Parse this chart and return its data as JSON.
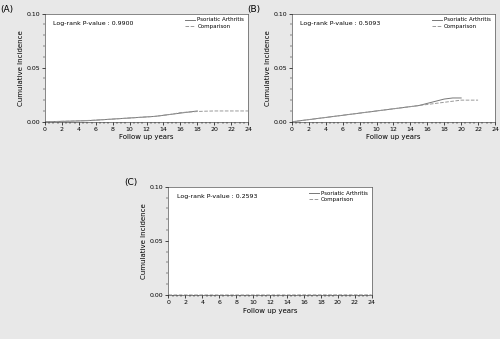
{
  "panels": [
    {
      "label": "(A)",
      "pvalue": "Log-rank P-value : 0.9900",
      "pa_x": [
        0,
        1,
        2,
        3,
        4,
        5,
        6,
        7,
        8,
        9,
        10,
        11,
        12,
        13,
        14,
        15,
        16,
        17,
        18
      ],
      "pa_y": [
        0.0,
        0.0002,
        0.0004,
        0.0006,
        0.0008,
        0.001,
        0.0015,
        0.002,
        0.0025,
        0.003,
        0.0035,
        0.004,
        0.0045,
        0.005,
        0.006,
        0.007,
        0.008,
        0.009,
        0.01
      ],
      "comp_x": [
        0,
        1,
        2,
        3,
        4,
        5,
        6,
        7,
        8,
        9,
        10,
        11,
        12,
        13,
        14,
        15,
        16,
        17,
        18,
        19,
        20,
        21,
        22,
        23,
        24
      ],
      "comp_y": [
        0.0,
        0.0002,
        0.0004,
        0.0006,
        0.0009,
        0.0012,
        0.0015,
        0.002,
        0.0025,
        0.003,
        0.0035,
        0.004,
        0.0045,
        0.005,
        0.006,
        0.007,
        0.0085,
        0.009,
        0.0095,
        0.0098,
        0.01,
        0.01,
        0.01,
        0.01,
        0.01
      ]
    },
    {
      "label": "(B)",
      "pvalue": "Log-rank P-value : 0.5093",
      "pa_x": [
        0,
        1,
        2,
        3,
        4,
        5,
        6,
        7,
        8,
        9,
        10,
        11,
        12,
        13,
        14,
        15,
        16,
        17,
        18,
        19,
        20
      ],
      "pa_y": [
        0.0,
        0.001,
        0.002,
        0.003,
        0.004,
        0.005,
        0.006,
        0.007,
        0.008,
        0.009,
        0.01,
        0.011,
        0.012,
        0.013,
        0.014,
        0.015,
        0.017,
        0.019,
        0.021,
        0.022,
        0.022
      ],
      "comp_x": [
        0,
        1,
        2,
        3,
        4,
        5,
        6,
        7,
        8,
        9,
        10,
        11,
        12,
        13,
        14,
        15,
        16,
        17,
        18,
        19,
        20,
        21,
        22
      ],
      "comp_y": [
        0.0,
        0.001,
        0.002,
        0.003,
        0.004,
        0.005,
        0.006,
        0.007,
        0.008,
        0.009,
        0.01,
        0.011,
        0.012,
        0.013,
        0.014,
        0.015,
        0.016,
        0.017,
        0.018,
        0.019,
        0.02,
        0.02,
        0.02
      ]
    },
    {
      "label": "(C)",
      "pvalue": "Log-rank P-value : 0.2593",
      "pa_x": [
        0,
        2,
        4,
        6,
        8,
        10,
        12,
        14,
        16,
        18,
        20,
        22,
        24
      ],
      "pa_y": [
        0.0,
        0.0,
        0.0,
        0.0,
        0.0,
        0.0,
        0.0,
        0.0,
        0.0,
        0.0,
        0.0,
        0.0,
        0.0
      ],
      "comp_x": [
        0,
        2,
        4,
        6,
        8,
        10,
        12,
        14,
        16,
        18,
        20,
        22,
        24
      ],
      "comp_y": [
        0.0,
        0.0,
        0.0,
        0.0,
        0.0,
        0.0,
        0.0,
        0.0,
        0.0001,
        0.0001,
        0.0001,
        0.0001,
        0.0001
      ]
    }
  ],
  "pa_color": "#777777",
  "comp_color": "#999999",
  "pa_linestyle": "solid",
  "comp_linestyle": "dashed",
  "ylim": [
    0,
    0.1
  ],
  "xlim": [
    0,
    24
  ],
  "yticks": [
    0.0,
    0.05,
    0.1
  ],
  "xticks": [
    0,
    2,
    4,
    6,
    8,
    10,
    12,
    14,
    16,
    18,
    20,
    22,
    24
  ],
  "xlabel": "Follow up years",
  "ylabel": "Cumulative Incidence",
  "legend_pa": "Psoriatic Arthritis",
  "legend_comp": "Comparison",
  "bg_color": "#e8e8e8",
  "plot_bg": "#ffffff",
  "spine_color": "#555555"
}
